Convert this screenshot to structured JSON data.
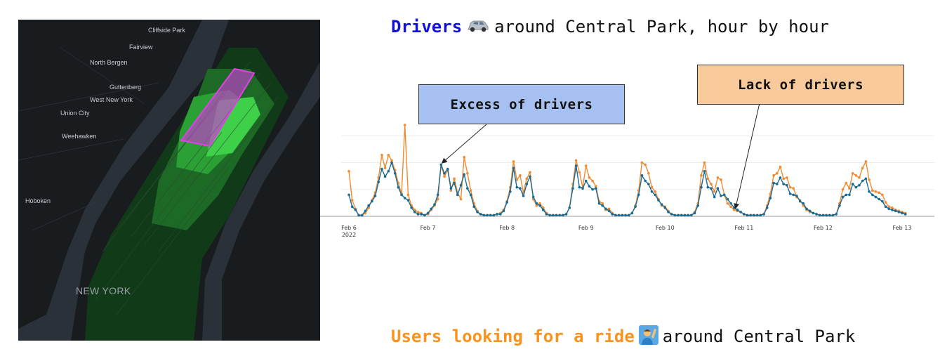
{
  "header": {
    "title_em": "Drivers",
    "title_rest": "around Central Park, hour by hour",
    "title_icon": "car-icon"
  },
  "footer": {
    "title_em": "Users looking for a ride",
    "title_rest": "around Central Park",
    "title_icon": "person-raising-hand-icon"
  },
  "colors": {
    "drivers_accent": "#1111dd",
    "users_accent": "#f7931e",
    "series_drivers": "#176b96",
    "series_users": "#f28a30",
    "excess_box": "#a6c1f1",
    "lack_box": "#f8c99a",
    "map_background": "#191c1f",
    "map_highlight": "#e040e8"
  },
  "map": {
    "labels": [
      "Cliffside Park",
      "Fairview",
      "North Bergen",
      "Guttenberg",
      "West New York",
      "Union City",
      "Weehawken",
      "Hoboken",
      "NEW YORK"
    ]
  },
  "annotations": {
    "excess": "Excess of drivers",
    "lack": "Lack of drivers"
  },
  "chart_data": {
    "type": "line",
    "title": "",
    "xlabel": "",
    "ylabel": "",
    "x_unit": "hours since Feb 6 2022 00:00",
    "x_ticks": [
      {
        "label": "Feb 6",
        "sublabel": "2022",
        "x": 0
      },
      {
        "label": "Feb 7",
        "x": 24
      },
      {
        "label": "Feb 8",
        "x": 48
      },
      {
        "label": "Feb 9",
        "x": 72
      },
      {
        "label": "Feb 10",
        "x": 96
      },
      {
        "label": "Feb 11",
        "x": 120
      },
      {
        "label": "Feb 12",
        "x": 144
      },
      {
        "label": "Feb 13",
        "x": 168
      }
    ],
    "xlim": [
      0,
      169
    ],
    "ylim": [
      0,
      100
    ],
    "grid": true,
    "series": [
      {
        "name": "",
        "color_key": "series_drivers",
        "values": [
          20,
          9,
          6,
          1,
          1,
          5,
          10,
          14,
          19,
          32,
          44,
          37,
          42,
          50,
          40,
          27,
          20,
          17,
          15,
          8,
          4,
          2,
          2,
          1,
          3,
          7,
          11,
          20,
          48,
          40,
          44,
          26,
          31,
          20,
          29,
          39,
          26,
          20,
          9,
          4,
          2,
          1,
          1,
          1,
          1,
          2,
          2,
          5,
          13,
          23,
          45,
          27,
          26,
          19,
          30,
          37,
          18,
          12,
          10,
          6,
          2,
          1,
          1,
          1,
          1,
          1,
          2,
          8,
          26,
          47,
          27,
          26,
          33,
          28,
          25,
          26,
          12,
          10,
          7,
          5,
          2,
          1,
          1,
          1,
          1,
          1,
          3,
          9,
          20,
          38,
          33,
          30,
          23,
          20,
          15,
          11,
          8,
          4,
          2,
          1,
          1,
          1,
          1,
          1,
          1,
          3,
          10,
          27,
          42,
          27,
          26,
          18,
          26,
          19,
          20,
          16,
          12,
          8,
          6,
          4,
          2,
          1,
          1,
          1,
          1,
          1,
          2,
          8,
          17,
          31,
          30,
          36,
          30,
          29,
          21,
          20,
          19,
          14,
          12,
          7,
          5,
          3,
          2,
          1,
          1,
          1,
          1,
          1,
          2,
          10,
          18,
          20,
          20,
          30,
          27,
          29,
          33,
          35,
          23,
          20,
          18,
          16,
          14,
          9,
          7,
          6,
          5,
          4,
          3,
          2
        ]
      },
      {
        "name": "",
        "color_key": "series_users",
        "values": [
          42,
          15,
          7,
          1,
          1,
          3,
          8,
          15,
          22,
          36,
          57,
          45,
          57,
          52,
          43,
          31,
          21,
          85,
          20,
          10,
          6,
          4,
          3,
          1,
          2,
          6,
          10,
          16,
          48,
          37,
          43,
          24,
          35,
          22,
          16,
          55,
          40,
          24,
          12,
          5,
          2,
          1,
          1,
          1,
          1,
          2,
          3,
          6,
          14,
          27,
          51,
          34,
          38,
          22,
          35,
          41,
          16,
          10,
          12,
          8,
          3,
          1,
          1,
          1,
          1,
          1,
          2,
          8,
          30,
          52,
          41,
          27,
          47,
          36,
          33,
          28,
          14,
          12,
          6,
          7,
          3,
          1,
          1,
          1,
          1,
          1,
          3,
          10,
          24,
          50,
          48,
          40,
          27,
          23,
          16,
          10,
          9,
          5,
          2,
          1,
          1,
          1,
          1,
          1,
          1,
          4,
          12,
          38,
          50,
          35,
          30,
          23,
          36,
          34,
          20,
          12,
          9,
          6,
          5,
          4,
          2,
          1,
          1,
          1,
          1,
          1,
          2,
          10,
          21,
          38,
          40,
          46,
          35,
          36,
          27,
          26,
          18,
          15,
          10,
          6,
          4,
          3,
          2,
          1,
          1,
          1,
          1,
          1,
          2,
          12,
          25,
          31,
          26,
          40,
          38,
          36,
          45,
          51,
          34,
          24,
          23,
          22,
          20,
          13,
          9,
          8,
          6,
          5,
          4,
          3
        ]
      }
    ],
    "annotation_points": [
      {
        "label_key": "excess",
        "series": 0,
        "x": 28
      },
      {
        "label_key": "lack",
        "series": 1,
        "x": 117
      }
    ]
  }
}
